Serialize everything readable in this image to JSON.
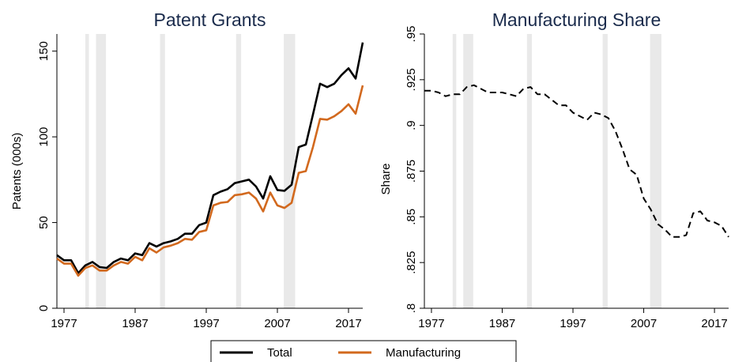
{
  "chart_data": [
    {
      "type": "line",
      "title": "Patent Grants",
      "ylabel": "Patents (000s)",
      "x": [
        1976,
        1977,
        1978,
        1979,
        1980,
        1981,
        1982,
        1983,
        1984,
        1985,
        1986,
        1987,
        1988,
        1989,
        1990,
        1991,
        1992,
        1993,
        1994,
        1995,
        1996,
        1997,
        1998,
        1999,
        2000,
        2001,
        2002,
        2003,
        2004,
        2005,
        2006,
        2007,
        2008,
        2009,
        2010,
        2011,
        2012,
        2013,
        2014,
        2015,
        2016,
        2017,
        2018,
        2019
      ],
      "series": [
        {
          "name": "Total",
          "color": "#000000",
          "values": [
            31,
            28,
            28,
            20.5,
            25,
            27,
            24,
            23.5,
            27,
            29,
            28,
            32,
            31,
            38,
            36,
            38,
            39,
            40.5,
            43.5,
            43.5,
            48.5,
            50,
            66,
            68,
            69.5,
            73,
            74,
            75,
            71,
            64,
            77,
            69,
            68.5,
            72,
            94,
            95.5,
            113,
            131,
            129,
            131,
            136,
            140,
            134,
            155
          ]
        },
        {
          "name": "Manufacturing",
          "color": "#d2691e",
          "values": [
            29,
            26,
            26,
            19,
            23.5,
            25,
            22,
            22,
            25,
            27,
            26,
            30,
            28,
            35,
            32.5,
            35.5,
            36.5,
            38,
            40.5,
            40,
            44.5,
            45.5,
            60,
            61.5,
            62,
            66,
            66.5,
            67.5,
            64,
            56.5,
            67.5,
            60,
            58.5,
            61.5,
            79,
            80,
            94,
            110.5,
            110,
            112,
            115,
            119,
            113.5,
            130
          ]
        }
      ],
      "shaded_periods": [
        [
          1980,
          1980.5
        ],
        [
          1981.5,
          1982.9
        ],
        [
          1990.5,
          1991.2
        ],
        [
          2001.2,
          2001.9
        ],
        [
          2007.9,
          2009.5
        ]
      ],
      "xlim": [
        1976,
        2019
      ],
      "xticks": [
        1977,
        1987,
        1997,
        2007,
        2017
      ],
      "ylim": [
        0,
        160
      ],
      "yticks": [
        0,
        50,
        100,
        150
      ],
      "legend": "bottom"
    },
    {
      "type": "line",
      "title": "Manufacturing Share",
      "ylabel": "Share",
      "x": [
        1976,
        1977,
        1978,
        1979,
        1980,
        1981,
        1982,
        1983,
        1984,
        1985,
        1986,
        1987,
        1988,
        1989,
        1990,
        1991,
        1992,
        1993,
        1994,
        1995,
        1996,
        1997,
        1998,
        1999,
        2000,
        2001,
        2002,
        2003,
        2004,
        2005,
        2006,
        2007,
        2008,
        2009,
        2010,
        2011,
        2012,
        2013,
        2014,
        2015,
        2016,
        2017,
        2018,
        2019
      ],
      "series": [
        {
          "color": "#000000",
          "dashed": true,
          "values": [
            0.919,
            0.919,
            0.918,
            0.916,
            0.917,
            0.917,
            0.921,
            0.922,
            0.92,
            0.918,
            0.918,
            0.918,
            0.917,
            0.916,
            0.92,
            0.921,
            0.917,
            0.917,
            0.914,
            0.911,
            0.911,
            0.907,
            0.905,
            0.903,
            0.907,
            0.906,
            0.904,
            0.897,
            0.887,
            0.876,
            0.873,
            0.86,
            0.854,
            0.846,
            0.843,
            0.839,
            0.839,
            0.84,
            0.852,
            0.853,
            0.848,
            0.847,
            0.845,
            0.839
          ]
        }
      ],
      "shaded_periods": [
        [
          1980,
          1980.5
        ],
        [
          1981.5,
          1982.9
        ],
        [
          1990.5,
          1991.2
        ],
        [
          2001.2,
          2001.9
        ],
        [
          2007.9,
          2009.5
        ]
      ],
      "xlim": [
        1976,
        2019
      ],
      "xticks": [
        1977,
        1987,
        1997,
        2007,
        2017
      ],
      "ylim": [
        0.8,
        0.95
      ],
      "yticks": [
        {
          "value": 0.8,
          "label": ".8"
        },
        {
          "value": 0.825,
          "label": ".825"
        },
        {
          "value": 0.85,
          "label": ".85"
        },
        {
          "value": 0.875,
          "label": ".875"
        },
        {
          "value": 0.9,
          "label": ".9"
        },
        {
          "value": 0.925,
          "label": ".925"
        },
        {
          "value": 0.95,
          "label": ".95"
        }
      ]
    }
  ]
}
